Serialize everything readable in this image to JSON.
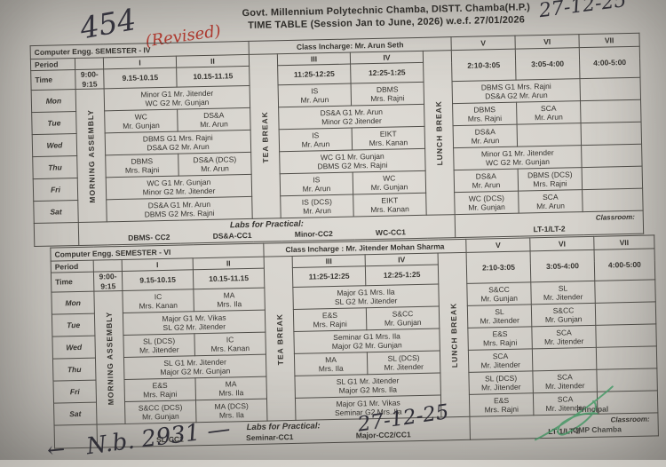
{
  "page": {
    "number_note": "454",
    "revised_note": "(Revised)",
    "date_top_right": "27-12-25",
    "title_line1": "Govt. Millennium Polytechnic Chamba, DISTT. Chamba(H.P.)",
    "title_line2": "TIME TABLE (Session Jan to June, 2026) w.e.f. 27/01/2026",
    "date_bottom": "27-12-25",
    "ref_note": "N.b. 2931 —",
    "arrow_note": "←",
    "principal_label": "Principal",
    "principal_org": "GMP Chamba",
    "ink_dark": "#2f2e38",
    "ink_red": "#b8392f",
    "ink_green": "#49a06b"
  },
  "tables": [
    {
      "title": "Computer Engg.  SEMESTER - IV",
      "incharge": "Class Incharge: Mr. Arun Seth",
      "period_label": "Period",
      "time_label": "Time",
      "assembly_label": "MORNING ASSEMBLY",
      "tea_label": "TEA BREAK",
      "lunch_label": "LUNCH BREAK",
      "assembly_time": "9:00-9:15",
      "periods": [
        "I",
        "II",
        "III",
        "IV",
        "V",
        "VI",
        "VII"
      ],
      "times": [
        "9.15-10.15",
        "10.15-11.15",
        "11:25-12:25",
        "12:25-1:25",
        "2:10-3:05",
        "3:05-4:00",
        "4:00-5:00"
      ],
      "days": [
        "Mon",
        "Tue",
        "Wed",
        "Thu",
        "Fri",
        "Sat"
      ],
      "rows": [
        [
          {
            "c": 2,
            "t": [
              "Minor G1 Mr. Jitender",
              "WC G2 Mr. Gunjan"
            ]
          },
          {
            "c": 1,
            "t": [
              "IS",
              "Mr. Arun"
            ]
          },
          {
            "c": 1,
            "t": [
              "DBMS",
              "Mrs. Rajni"
            ]
          },
          {
            "c": 2,
            "t": [
              "DBMS G1 Mrs. Rajni",
              "DS&A G2 Mr. Arun"
            ]
          },
          {
            "c": 1,
            "t": [
              "",
              ""
            ]
          }
        ],
        [
          {
            "c": 1,
            "t": [
              "WC",
              "Mr. Gunjan"
            ]
          },
          {
            "c": 1,
            "t": [
              "DS&A",
              "Mr. Arun"
            ]
          },
          {
            "c": 2,
            "t": [
              "DS&A G1 Mr. Arun",
              "Minor G2 Jitender"
            ]
          },
          {
            "c": 1,
            "t": [
              "DBMS",
              "Mrs. Rajni"
            ]
          },
          {
            "c": 1,
            "t": [
              "SCA",
              "Mr. Arun"
            ]
          },
          {
            "c": 1,
            "t": [
              "",
              ""
            ]
          }
        ],
        [
          {
            "c": 2,
            "t": [
              "DBMS G1 Mrs. Rajni",
              "DS&A G2 Mr. Arun"
            ]
          },
          {
            "c": 1,
            "t": [
              "IS",
              "Mr. Arun"
            ]
          },
          {
            "c": 1,
            "t": [
              "EIKT",
              "Mrs. Kanan"
            ]
          },
          {
            "c": 1,
            "t": [
              "DS&A",
              "Mr. Arun"
            ]
          },
          {
            "c": 1,
            "t": [
              "",
              ""
            ]
          },
          {
            "c": 1,
            "t": [
              "",
              ""
            ]
          }
        ],
        [
          {
            "c": 1,
            "t": [
              "DBMS",
              "Mrs. Rajni"
            ]
          },
          {
            "c": 1,
            "t": [
              "DS&A (DCS)",
              "Mr. Arun"
            ]
          },
          {
            "c": 2,
            "t": [
              "WC G1 Mr. Gunjan",
              "DBMS G2 Mrs. Rajni"
            ]
          },
          {
            "c": 2,
            "t": [
              "Minor G1 Mr. Jitender",
              "WC G2 Mr. Gunjan"
            ]
          },
          {
            "c": 1,
            "t": [
              "",
              ""
            ]
          }
        ],
        [
          {
            "c": 2,
            "t": [
              "WC G1 Mr. Gunjan",
              "Minor G2 Mr. Jitender"
            ]
          },
          {
            "c": 1,
            "t": [
              "IS",
              "Mr. Arun"
            ]
          },
          {
            "c": 1,
            "t": [
              "WC",
              "Mr. Gunjan"
            ]
          },
          {
            "c": 1,
            "t": [
              "DS&A",
              "Mr. Arun"
            ]
          },
          {
            "c": 1,
            "t": [
              "DBMS (DCS)",
              "Mrs. Rajni"
            ]
          },
          {
            "c": 1,
            "t": [
              "",
              ""
            ]
          }
        ],
        [
          {
            "c": 2,
            "t": [
              "DS&A G1 Mr. Arun",
              "DBMS G2 Mrs. Rajni"
            ]
          },
          {
            "c": 1,
            "t": [
              "IS (DCS)",
              "Mr. Arun"
            ]
          },
          {
            "c": 1,
            "t": [
              "EIKT",
              "Mrs. Kanan"
            ]
          },
          {
            "c": 1,
            "t": [
              "WC (DCS)",
              "Mr. Gunjan"
            ]
          },
          {
            "c": 1,
            "t": [
              "SCA",
              "Mr. Arun"
            ]
          },
          {
            "c": 1,
            "t": [
              "",
              ""
            ]
          }
        ]
      ],
      "labs_label": "Labs for Practical:",
      "labs": [
        "DBMS- CC2",
        "DS&A-CC1",
        "Minor-CC2",
        "WC-CC1"
      ],
      "classroom_label": "Classroom:",
      "classroom": "LT-1/LT-2"
    },
    {
      "title": "Computer Engg.  SEMESTER - VI",
      "incharge": "Class Incharge : Mr. Jitender Mohan Sharma",
      "period_label": "Period",
      "time_label": "Time",
      "assembly_label": "MORNING ASSEMBLY",
      "tea_label": "TEA BREAK",
      "lunch_label": "LUNCH BREAK",
      "assembly_time": "9:00-9:15",
      "periods": [
        "I",
        "II",
        "III",
        "IV",
        "V",
        "VI",
        "VII"
      ],
      "times": [
        "9.15-10.15",
        "10.15-11.15",
        "11:25-12:25",
        "12:25-1:25",
        "2:10-3:05",
        "3:05-4:00",
        "4:00-5:00"
      ],
      "days": [
        "Mon",
        "Tue",
        "Wed",
        "Thu",
        "Fri",
        "Sat"
      ],
      "rows": [
        [
          {
            "c": 1,
            "t": [
              "IC",
              "Mrs. Kanan"
            ]
          },
          {
            "c": 1,
            "t": [
              "MA",
              "Mrs. Ila"
            ]
          },
          {
            "c": 2,
            "t": [
              "Major G1 Mrs. Ila",
              "SL G2 Mr. Jitender"
            ]
          },
          {
            "c": 1,
            "t": [
              "S&CC",
              "Mr. Gunjan"
            ]
          },
          {
            "c": 1,
            "t": [
              "SL",
              "Mr. Jitender"
            ]
          },
          {
            "c": 1,
            "t": [
              "",
              ""
            ]
          }
        ],
        [
          {
            "c": 2,
            "t": [
              "Major G1 Mr. Vikas",
              "SL G2 Mr. Jitender"
            ]
          },
          {
            "c": 1,
            "t": [
              "E&S",
              "Mrs. Rajni"
            ]
          },
          {
            "c": 1,
            "t": [
              "S&CC",
              "Mr. Gunjan"
            ]
          },
          {
            "c": 1,
            "t": [
              "SL",
              "Mr. Jitender"
            ]
          },
          {
            "c": 1,
            "t": [
              "S&CC",
              "Mr. Gunjan"
            ]
          },
          {
            "c": 1,
            "t": [
              "",
              ""
            ]
          }
        ],
        [
          {
            "c": 1,
            "t": [
              "SL (DCS)",
              "Mr. Jitender"
            ]
          },
          {
            "c": 1,
            "t": [
              "IC",
              "Mrs. Kanan"
            ]
          },
          {
            "c": 2,
            "t": [
              "Seminar G1 Mrs. Ila",
              "Major G2 Mr. Gunjan"
            ]
          },
          {
            "c": 1,
            "t": [
              "E&S",
              "Mrs. Rajni"
            ]
          },
          {
            "c": 1,
            "t": [
              "SCA",
              "Mr. Jitender"
            ]
          },
          {
            "c": 1,
            "t": [
              "",
              ""
            ]
          }
        ],
        [
          {
            "c": 2,
            "t": [
              "SL G1 Mr. Jitender",
              "Major G2 Mr. Gunjan"
            ]
          },
          {
            "c": 1,
            "t": [
              "MA",
              "Mrs. Ila"
            ]
          },
          {
            "c": 1,
            "t": [
              "SL (DCS)",
              "Mr. Jitender"
            ]
          },
          {
            "c": 1,
            "t": [
              "SCA",
              "Mr. Jitender"
            ]
          },
          {
            "c": 1,
            "t": [
              "",
              ""
            ]
          },
          {
            "c": 1,
            "t": [
              "",
              ""
            ]
          }
        ],
        [
          {
            "c": 1,
            "t": [
              "E&S",
              "Mrs. Rajni"
            ]
          },
          {
            "c": 1,
            "t": [
              "MA",
              "Mrs. Ila"
            ]
          },
          {
            "c": 2,
            "t": [
              "SL G1 Mr. Jitender",
              "Major G2 Mrs. Ila"
            ]
          },
          {
            "c": 1,
            "t": [
              "SL (DCS)",
              "Mr. Jitender"
            ]
          },
          {
            "c": 1,
            "t": [
              "SCA",
              "Mr. Jitender"
            ]
          },
          {
            "c": 1,
            "t": [
              "",
              ""
            ]
          }
        ],
        [
          {
            "c": 1,
            "t": [
              "S&CC (DCS)",
              "Mr. Gunjan"
            ]
          },
          {
            "c": 1,
            "t": [
              "MA (DCS)",
              "Mrs. Ila"
            ]
          },
          {
            "c": 2,
            "t": [
              "Major G1 Mr. Vikas",
              "Seminar G2 Mrs. Ila"
            ]
          },
          {
            "c": 1,
            "t": [
              "E&S",
              "Mrs. Rajni"
            ]
          },
          {
            "c": 1,
            "t": [
              "SCA",
              "Mr. Jitender"
            ]
          },
          {
            "c": 1,
            "t": [
              "",
              ""
            ]
          }
        ]
      ],
      "labs_label": "Labs for Practical:",
      "labs": [
        "SL-CC1",
        "Seminar-CC1",
        "Major-CC2/CC1"
      ],
      "classroom_label": "Classroom:",
      "classroom": "LT-1/LT-2"
    }
  ]
}
